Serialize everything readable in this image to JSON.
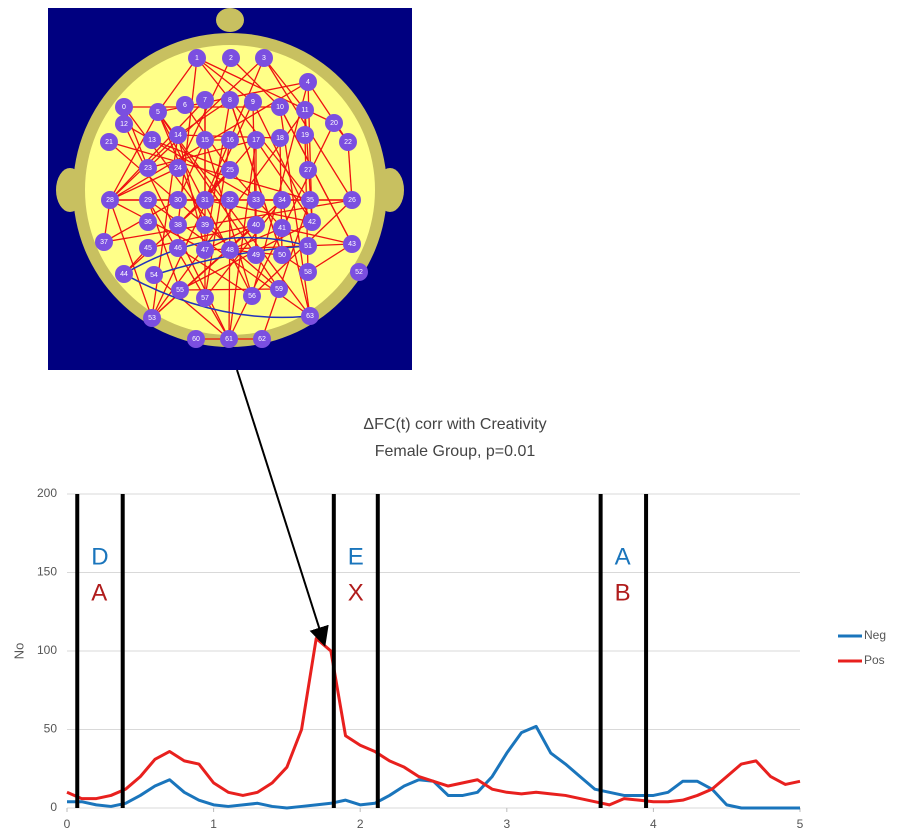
{
  "chart_data": {
    "type": "line",
    "title": "ΔFC(t) corr with Creativity",
    "subtitle": "Female Group, p=0.01",
    "y_label": "No",
    "x": [
      0,
      0.1,
      0.2,
      0.3,
      0.4,
      0.5,
      0.6,
      0.7,
      0.8,
      0.9,
      1,
      1.1,
      1.2,
      1.3,
      1.4,
      1.5,
      1.6,
      1.7,
      1.8,
      1.9,
      2,
      2.1,
      2.2,
      2.3,
      2.4,
      2.5,
      2.6,
      2.7,
      2.8,
      2.9,
      3,
      3.1,
      3.2,
      3.3,
      3.4,
      3.5,
      3.6,
      3.7,
      3.8,
      3.9,
      4,
      4.1,
      4.2,
      4.3,
      4.4,
      4.5,
      4.6,
      4.7,
      4.8,
      4.9,
      5
    ],
    "series": [
      {
        "name": "Neg",
        "color": "#1a75bc",
        "values": [
          4,
          4,
          2,
          1,
          3,
          8,
          14,
          18,
          10,
          5,
          2,
          1,
          2,
          3,
          1,
          0,
          1,
          2,
          3,
          5,
          2,
          3,
          8,
          14,
          18,
          17,
          8,
          8,
          10,
          20,
          35,
          48,
          52,
          35,
          28,
          20,
          12,
          10,
          8,
          8,
          8,
          10,
          17,
          17,
          12,
          2,
          0,
          0,
          0,
          0,
          0
        ]
      },
      {
        "name": "Pos",
        "color": "#e8201e",
        "values": [
          10,
          6,
          6,
          8,
          12,
          20,
          31,
          36,
          30,
          28,
          16,
          10,
          8,
          10,
          16,
          26,
          50,
          108,
          100,
          46,
          40,
          36,
          30,
          26,
          20,
          17,
          14,
          16,
          18,
          12,
          10,
          9,
          10,
          9,
          8,
          6,
          4,
          2,
          6,
          5,
          4,
          4,
          5,
          8,
          12,
          20,
          28,
          30,
          20,
          15,
          17
        ]
      }
    ],
    "markers": [
      0.07,
      0.38,
      1.82,
      2.12,
      3.64,
      3.95
    ],
    "annotations": [
      {
        "top": "D",
        "bottom": "A"
      },
      {
        "top": "E",
        "bottom": "X"
      },
      {
        "top": "A",
        "bottom": "B"
      }
    ],
    "xlim": [
      0,
      5
    ],
    "ylim": [
      0,
      200
    ],
    "xticks": [
      0,
      1,
      2,
      3,
      4,
      5
    ],
    "yticks": [
      0,
      50,
      100,
      150,
      200
    ],
    "grid": true
  },
  "diagram": {
    "electrodes": [
      "0",
      "1",
      "2",
      "3",
      "4",
      "5",
      "6",
      "7",
      "8",
      "9",
      "10",
      "11",
      "12",
      "13",
      "14",
      "15",
      "16",
      "17",
      "18",
      "19",
      "20",
      "21",
      "22",
      "23",
      "24",
      "25",
      "26",
      "27",
      "28",
      "29",
      "30",
      "31",
      "32",
      "33",
      "34",
      "35",
      "36",
      "37",
      "38",
      "39",
      "40",
      "41",
      "42",
      "43",
      "44",
      "45",
      "46",
      "47",
      "48",
      "49",
      "50",
      "51",
      "52",
      "53",
      "54",
      "55",
      "56",
      "57",
      "58",
      "59",
      "60",
      "61",
      "62",
      "63"
    ]
  }
}
